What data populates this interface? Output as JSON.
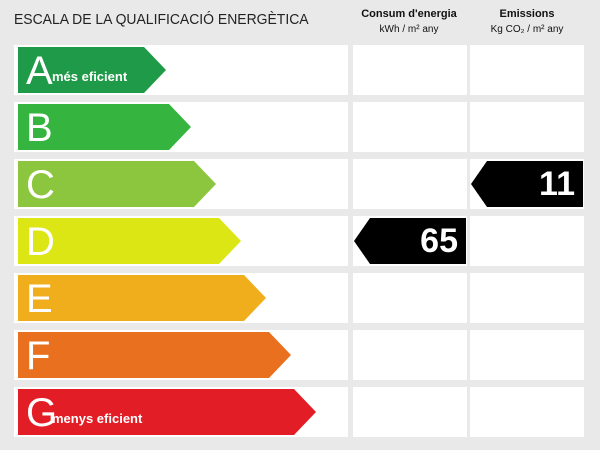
{
  "title": "ESCALA DE LA QUALIFICACIÓ ENERGÈTICA",
  "columns": {
    "consum": {
      "label": "Consum d'energia",
      "unit": "kWh / m² any"
    },
    "emissions": {
      "label": "Emissions",
      "unit": "Kg CO₂ / m² any"
    }
  },
  "classes": [
    {
      "letter": "A",
      "note": "més eficient",
      "color": "#1f9a48"
    },
    {
      "letter": "B",
      "note": "",
      "color": "#35b440"
    },
    {
      "letter": "C",
      "note": "",
      "color": "#8cc63e"
    },
    {
      "letter": "D",
      "note": "",
      "color": "#dde615"
    },
    {
      "letter": "E",
      "note": "",
      "color": "#f0ad1c"
    },
    {
      "letter": "F",
      "note": "",
      "color": "#e8701e"
    },
    {
      "letter": "G",
      "note": "menys eficient",
      "color": "#e31d25"
    }
  ],
  "ratings": {
    "consum": {
      "class": "D",
      "value": "65"
    },
    "emissions": {
      "class": "C",
      "value": "11"
    }
  },
  "indicator_color": "#000000"
}
